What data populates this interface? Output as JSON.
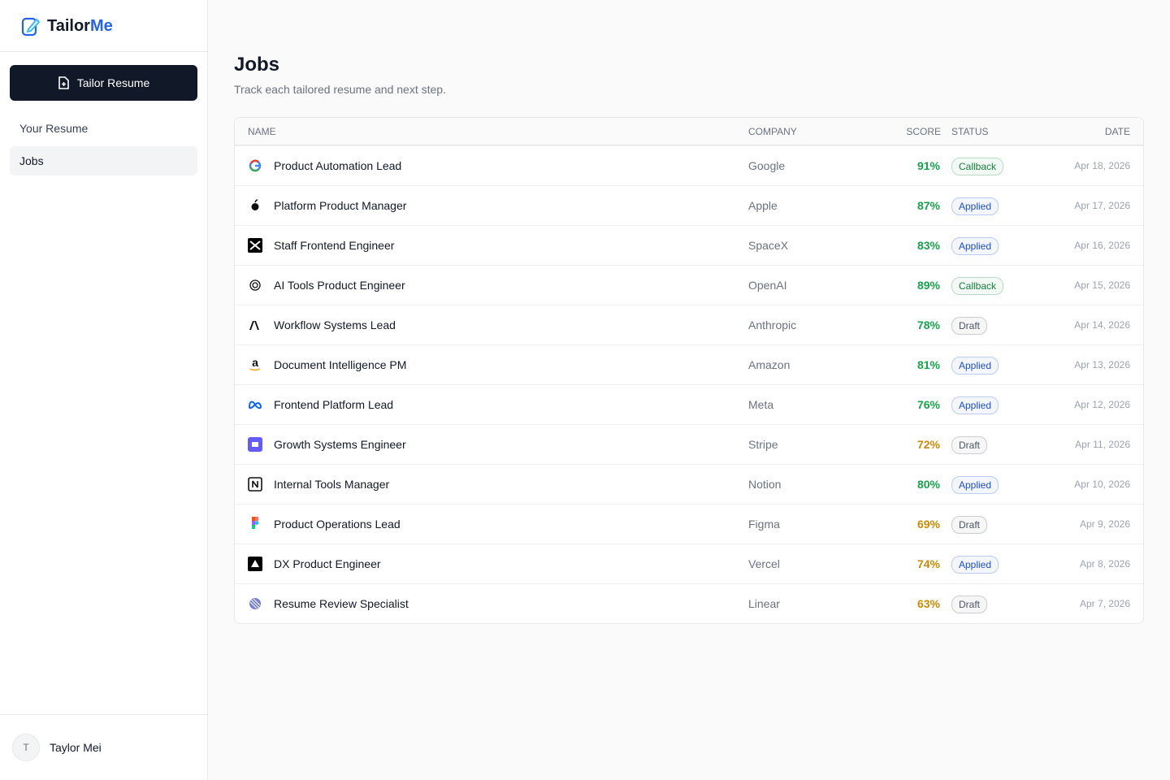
{
  "sidebar": {
    "brand": {
      "part1": "Tailor",
      "part2": "Me"
    },
    "primary_button": "Tailor Resume",
    "nav": [
      "Your Resume",
      "Jobs"
    ],
    "user": {
      "initial": "T",
      "name": "Taylor Mei"
    }
  },
  "header": {
    "title": "Jobs",
    "subtitle": "Track each tailored resume and next step."
  },
  "table": {
    "columns": [
      "NAME",
      "COMPANY",
      "SCORE",
      "STATUS",
      "DATE"
    ],
    "rows": [
      {
        "name": "Product Automation Lead",
        "company": "Google",
        "score": "91%",
        "score_color": "#16a34a",
        "status": "Callback",
        "status_color": "#15803d",
        "date": "Apr 18, 2026"
      },
      {
        "name": "Platform Product Manager",
        "company": "Apple",
        "score": "87%",
        "score_color": "#16a34a",
        "status": "Applied",
        "status_color": "#1d4ed8",
        "date": "Apr 17, 2026"
      },
      {
        "name": "Staff Frontend Engineer",
        "company": "SpaceX",
        "score": "83%",
        "score_color": "#16a34a",
        "status": "Applied",
        "status_color": "#1d4ed8",
        "date": "Apr 16, 2026"
      },
      {
        "name": "AI Tools Product Engineer",
        "company": "OpenAI",
        "score": "89%",
        "score_color": "#16a34a",
        "status": "Callback",
        "status_color": "#15803d",
        "date": "Apr 15, 2026"
      },
      {
        "name": "Workflow Systems Lead",
        "company": "Anthropic",
        "score": "78%",
        "score_color": "#16a34a",
        "status": "Draft",
        "status_color": "#4b5563",
        "date": "Apr 14, 2026"
      },
      {
        "name": "Document Intelligence PM",
        "company": "Amazon",
        "score": "81%",
        "score_color": "#16a34a",
        "status": "Applied",
        "status_color": "#1d4ed8",
        "date": "Apr 13, 2026"
      },
      {
        "name": "Frontend Platform Lead",
        "company": "Meta",
        "score": "76%",
        "score_color": "#16a34a",
        "status": "Applied",
        "status_color": "#1d4ed8",
        "date": "Apr 12, 2026"
      },
      {
        "name": "Growth Systems Engineer",
        "company": "Stripe",
        "score": "72%",
        "score_color": "#ca8a04",
        "status": "Draft",
        "status_color": "#4b5563",
        "date": "Apr 11, 2026"
      },
      {
        "name": "Internal Tools Manager",
        "company": "Notion",
        "score": "80%",
        "score_color": "#16a34a",
        "status": "Applied",
        "status_color": "#1d4ed8",
        "date": "Apr 10, 2026"
      },
      {
        "name": "Product Operations Lead",
        "company": "Figma",
        "score": "69%",
        "score_color": "#ca8a04",
        "status": "Draft",
        "status_color": "#4b5563",
        "date": "Apr 9, 2026"
      },
      {
        "name": "DX Product Engineer",
        "company": "Vercel",
        "score": "74%",
        "score_color": "#ca8a04",
        "status": "Applied",
        "status_color": "#1d4ed8",
        "date": "Apr 8, 2026"
      },
      {
        "name": "Resume Review Specialist",
        "company": "Linear",
        "score": "63%",
        "score_color": "#ca8a04",
        "status": "Draft",
        "status_color": "#4b5563",
        "date": "Apr 7, 2026"
      }
    ]
  }
}
